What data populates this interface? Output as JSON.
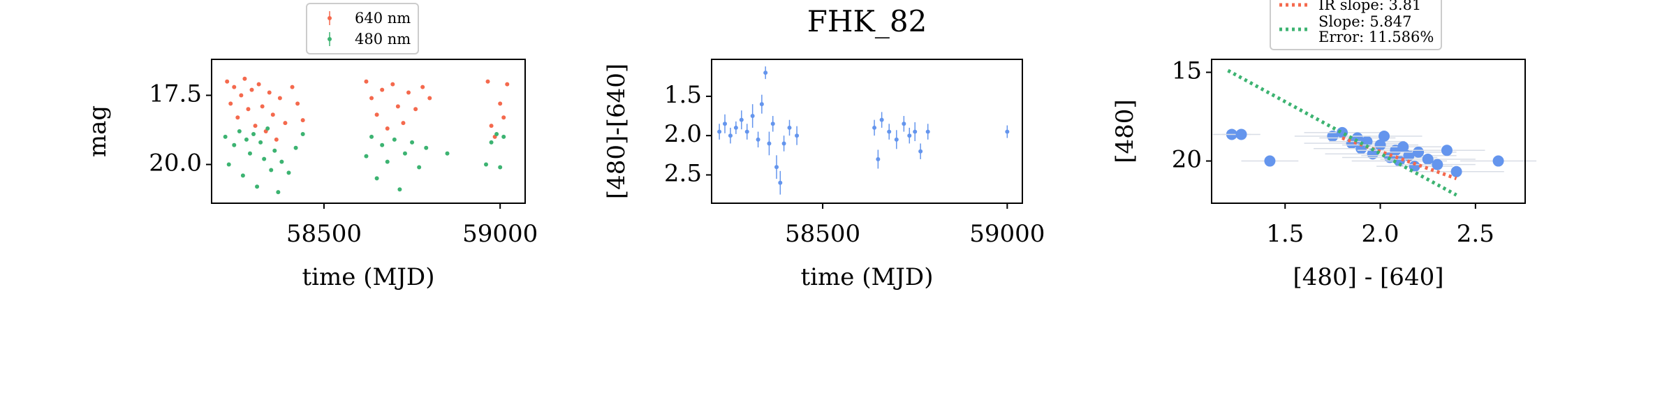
{
  "chart_data": [
    {
      "type": "scatter",
      "xlabel": "time (MJD)",
      "ylabel": "mag",
      "legend": "above",
      "xlim": [
        58181,
        59071
      ],
      "xticks": [
        58500,
        59000
      ],
      "ylim": [
        21.4,
        16.2
      ],
      "yticks": [
        17.5,
        {
          "value": 20,
          "label": "20.0"
        }
      ],
      "series": [
        {
          "name": "640 nm",
          "color": "#f4694d",
          "x": [
            58225,
            58235,
            58245,
            58255,
            58265,
            58275,
            58285,
            58295,
            58305,
            58315,
            58325,
            58335,
            58345,
            58355,
            58365,
            58375,
            58390,
            58410,
            58425,
            58440,
            58620,
            58635,
            58650,
            58665,
            58680,
            58695,
            58710,
            58725,
            58740,
            58760,
            58780,
            58800,
            58965,
            58975,
            58985,
            59000,
            59010,
            59020
          ],
          "values": [
            17.0,
            17.8,
            17.2,
            18.3,
            17.5,
            16.9,
            18.0,
            17.3,
            18.6,
            17.1,
            17.9,
            18.8,
            17.4,
            18.2,
            19.1,
            17.6,
            18.5,
            17.2,
            17.8,
            18.4,
            17.0,
            17.6,
            18.2,
            17.3,
            18.7,
            17.1,
            17.9,
            18.5,
            17.4,
            18.0,
            17.2,
            17.6,
            17.0,
            18.6,
            19.0,
            17.8,
            18.3,
            17.1
          ]
        },
        {
          "name": "480 nm",
          "color": "#3cb371",
          "x": [
            58220,
            58230,
            58245,
            58260,
            58270,
            58280,
            58290,
            58300,
            58310,
            58320,
            58330,
            58340,
            58350,
            58360,
            58370,
            58380,
            58400,
            58420,
            58440,
            58620,
            58635,
            58650,
            58665,
            58680,
            58700,
            58715,
            58730,
            58750,
            58770,
            58790,
            58850,
            58960,
            58975,
            58990,
            59000,
            59010
          ],
          "values": [
            19.0,
            20.0,
            19.3,
            18.8,
            20.4,
            19.1,
            19.6,
            18.9,
            20.8,
            19.2,
            19.8,
            18.7,
            20.2,
            19.5,
            21.0,
            19.9,
            20.3,
            19.4,
            18.9,
            19.7,
            19.0,
            20.5,
            19.3,
            19.9,
            19.1,
            20.9,
            19.6,
            19.2,
            20.1,
            19.4,
            19.6,
            20.0,
            19.2,
            18.9,
            20.1,
            19.0
          ]
        }
      ]
    },
    {
      "type": "scatter",
      "title": "FHK_82",
      "xlabel": "time (MJD)",
      "ylabel": "[480]-[640]",
      "xlim": [
        58199,
        59041
      ],
      "xticks": [
        58500,
        59000
      ],
      "ylim": [
        2.86,
        1.03
      ],
      "yticks": [
        1.5,
        {
          "value": 2,
          "label": "2.0"
        },
        2.5
      ],
      "series": [
        {
          "color": "#6495ed",
          "x": [
            58220,
            58235,
            58250,
            58265,
            58280,
            58295,
            58310,
            58325,
            58335,
            58345,
            58355,
            58365,
            58375,
            58385,
            58395,
            58410,
            58430,
            58640,
            58650,
            58660,
            58680,
            58700,
            58720,
            58735,
            58750,
            58765,
            58785,
            59000
          ],
          "values": [
            1.95,
            1.85,
            2.0,
            1.9,
            1.8,
            1.95,
            1.75,
            2.05,
            1.6,
            1.2,
            2.1,
            1.85,
            2.4,
            2.6,
            2.1,
            1.9,
            2.0,
            1.9,
            2.3,
            1.8,
            1.95,
            2.05,
            1.85,
            2.0,
            1.95,
            2.2,
            1.95,
            1.95
          ],
          "errors": [
            0.1,
            0.12,
            0.1,
            0.08,
            0.12,
            0.1,
            0.15,
            0.1,
            0.12,
            0.08,
            0.15,
            0.1,
            0.15,
            0.15,
            0.1,
            0.1,
            0.12,
            0.1,
            0.12,
            0.1,
            0.1,
            0.12,
            0.1,
            0.1,
            0.12,
            0.1,
            0.1,
            0.08
          ]
        }
      ]
    },
    {
      "type": "scatter",
      "xlabel": "[480] - [640]",
      "ylabel": "[480]",
      "legend": "above",
      "xlim": [
        1.114,
        2.761
      ],
      "xticks": [
        1.5,
        {
          "value": 2,
          "label": "2.0"
        },
        2.5
      ],
      "ylim": [
        22.38,
        14.27
      ],
      "yticks": [
        15,
        20
      ],
      "series": [
        {
          "color": "#6495ed",
          "x": [
            1.22,
            1.27,
            1.42,
            1.75,
            1.8,
            1.85,
            1.88,
            1.9,
            1.93,
            1.96,
            2.0,
            2.02,
            2.05,
            2.08,
            2.1,
            2.12,
            2.15,
            2.18,
            2.2,
            2.25,
            2.3,
            2.35,
            2.4,
            2.62
          ],
          "values": [
            18.5,
            18.5,
            20.0,
            18.6,
            18.4,
            19.0,
            18.7,
            19.3,
            18.9,
            19.6,
            19.1,
            18.6,
            19.8,
            19.4,
            20.0,
            19.2,
            19.7,
            20.3,
            19.5,
            19.9,
            20.2,
            19.4,
            20.6,
            20.0
          ],
          "xerr": [
            0.1,
            0.1,
            0.15,
            0.2,
            0.2,
            0.25,
            0.2,
            0.25,
            0.2,
            0.25,
            0.2,
            0.2,
            0.25,
            0.2,
            0.25,
            0.2,
            0.25,
            0.2,
            0.2,
            0.25,
            0.2,
            0.2,
            0.25,
            0.2
          ]
        }
      ],
      "fits": [
        {
          "name": "IR slope: 3.81",
          "color": "#f4694d",
          "x": [
            1.8,
            2.4
          ],
          "values": [
            18.7,
            20.99
          ]
        },
        {
          "name": "Slope: 5.847\nError: 11.586%",
          "color": "#3cb371",
          "x": [
            1.2,
            2.4
          ],
          "values": [
            14.9,
            21.92
          ]
        }
      ]
    }
  ]
}
